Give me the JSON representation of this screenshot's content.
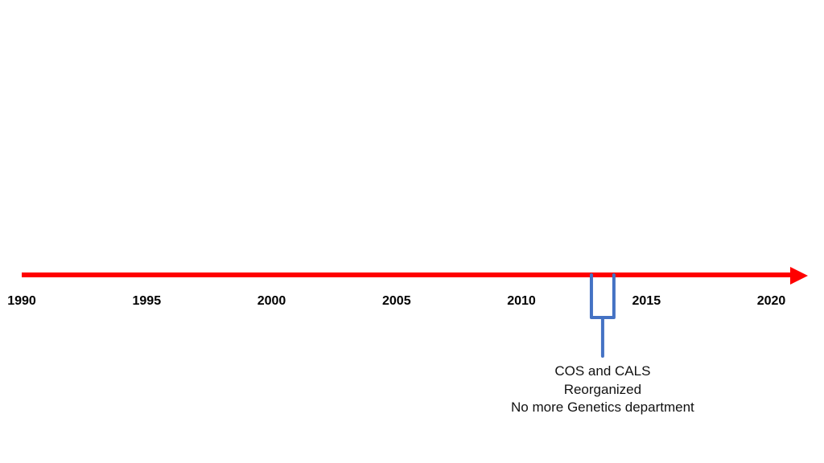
{
  "timeline": {
    "colors": {
      "axis": "#ff0000",
      "bracket": "#4472c4"
    },
    "years": [
      "1990",
      "1995",
      "2000",
      "2005",
      "2010",
      "2015",
      "2020"
    ],
    "events": [
      {
        "start_year": 2012.8,
        "end_year": 2013.7,
        "lines": [
          "COS and CALS",
          "Reorganized",
          "No more Genetics department"
        ]
      }
    ]
  }
}
